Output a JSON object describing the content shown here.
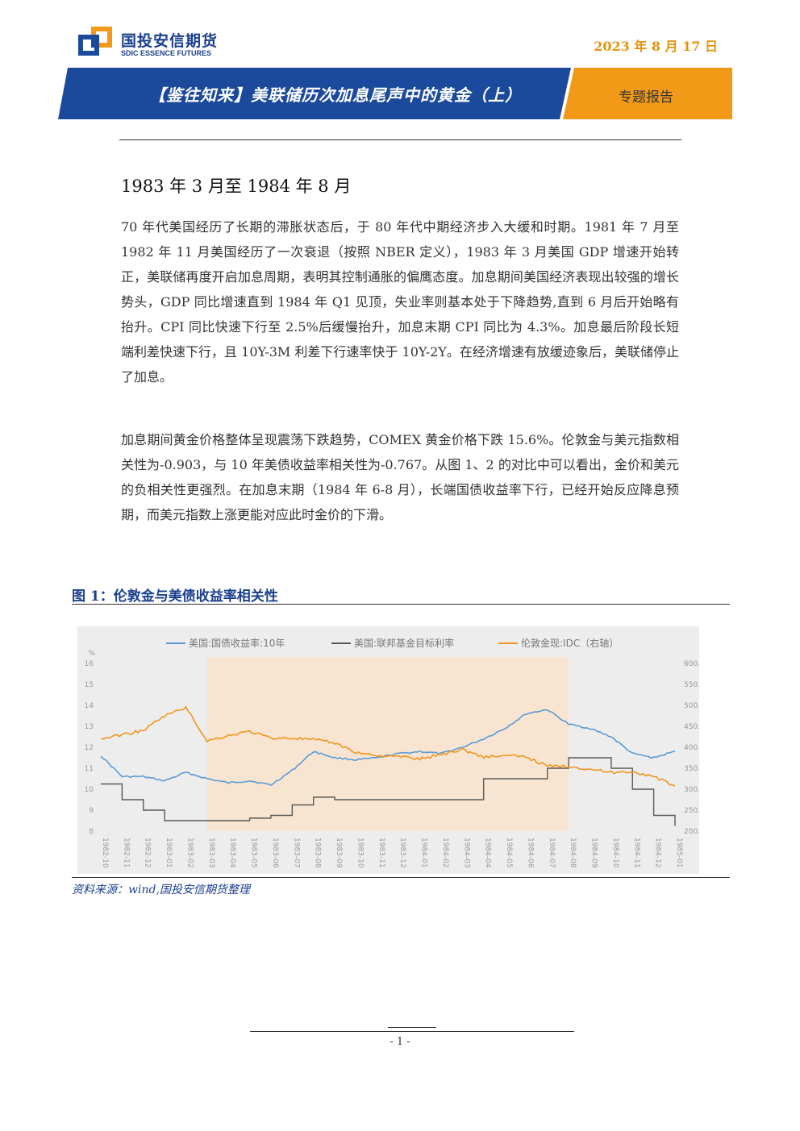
{
  "header": {
    "logo_cn": "国投安信期货",
    "logo_en": "SDIC ESSENCE FUTURES",
    "date": "2023 年 8 月 17 日",
    "title": "【鉴往知来】美联储历次加息尾声中的黄金（上）",
    "tag": "专题报告",
    "colors": {
      "blue": "#1b4a9c",
      "orange": "#f29a17"
    }
  },
  "body": {
    "section_title": "1983 年 3 月至 1984 年 8 月",
    "paragraphs": [
      "70 年代美国经历了长期的滞胀状态后，于 80 年代中期经济步入大缓和时期。1981 年 7 月至 1982 年 11 月美国经历了一次衰退（按照 NBER 定义），1983 年 3 月美国 GDP 增速开始转正，美联储再度开启加息周期，表明其控制通胀的偏鹰态度。加息期间美国经济表现出较强的增长势头，GDP 同比增速直到 1984 年 Q1 见顶，失业率则基本处于下降趋势,直到 6 月后开始略有抬升。CPI 同比快速下行至 2.5%后缓慢抬升，加息末期 CPI 同比为 4.3%。加息最后阶段长短端利差快速下行，且 10Y-3M 利差下行速率快于 10Y-2Y。在经济增速有放缓迹象后，美联储停止了加息。",
      "加息期间黄金价格整体呈现震荡下跌趋势，COMEX 黄金价格下跌 15.6%。伦敦金与美元指数相关性为-0.903，与 10 年美债收益率相关性为-0.767。从图 1、2 的对比中可以看出，金价和美元的负相关性更强烈。在加息末期（1984 年 6-8 月），长端国债收益率下行，已经开始反应降息预期，而美元指数上涨更能对应此时金价的下滑。"
    ]
  },
  "figure": {
    "title": "图 1：伦敦金与美债收益率相关性",
    "source": "资料来源：wind,国投安信期货整理"
  },
  "chart_data": {
    "type": "line",
    "left_unit": "%",
    "y_left": {
      "min": 8,
      "max": 16,
      "ticks": [
        "8",
        "9",
        "10",
        "11",
        "12",
        "13",
        "14",
        "15",
        "16"
      ]
    },
    "y_right": {
      "min": 200,
      "max": 600,
      "ticks": [
        "200.00",
        "250.00",
        "300.00",
        "350.00",
        "400.00",
        "450.00",
        "500.00",
        "550.00",
        "600.00"
      ]
    },
    "x_labels": [
      "1982-10",
      "1982-11",
      "1982-12",
      "1983-01",
      "1983-02",
      "1983-03",
      "1983-04",
      "1983-05",
      "1983-06",
      "1983-07",
      "1983-08",
      "1983-09",
      "1983-10",
      "1983-11",
      "1983-12",
      "1984-01",
      "1984-02",
      "1984-03",
      "1984-04",
      "1984-05",
      "1984-06",
      "1984-07",
      "1984-08",
      "1984-09",
      "1984-10",
      "1984-11",
      "1984-12",
      "1985-01"
    ],
    "shaded_range": [
      "1983-03",
      "1984-08"
    ],
    "grid": false,
    "legend_position": "top",
    "series": [
      {
        "name": "美国:国债收益率:10年",
        "axis": "left",
        "color": "#5b9bd5",
        "values": [
          11.6,
          10.6,
          10.6,
          10.4,
          10.8,
          10.5,
          10.3,
          10.4,
          10.2,
          10.9,
          11.8,
          11.5,
          11.4,
          11.5,
          11.7,
          11.8,
          11.7,
          12.0,
          12.4,
          12.9,
          13.6,
          13.8,
          13.1,
          12.9,
          12.5,
          11.7,
          11.5,
          11.8
        ]
      },
      {
        "name": "美国:联邦基金目标利率",
        "axis": "left",
        "color": "#595959",
        "values": [
          10.25,
          9.5,
          9.0,
          8.5,
          8.5,
          8.5,
          8.5,
          8.62,
          8.75,
          9.25,
          9.62,
          9.5,
          9.5,
          9.5,
          9.5,
          9.5,
          9.5,
          9.5,
          10.5,
          10.5,
          10.5,
          11.0,
          11.5,
          11.5,
          11.0,
          10.0,
          8.75,
          8.25
        ]
      },
      {
        "name": "伦敦金现:IDC（右轴）",
        "axis": "right",
        "color": "#f0961e",
        "values": [
          420,
          430,
          440,
          475,
          495,
          415,
          428,
          438,
          422,
          422,
          418,
          410,
          388,
          380,
          378,
          372,
          383,
          395,
          377,
          380,
          377,
          355,
          355,
          348,
          340,
          342,
          330,
          307
        ]
      }
    ]
  },
  "footer": {
    "page": "- 1 -"
  }
}
